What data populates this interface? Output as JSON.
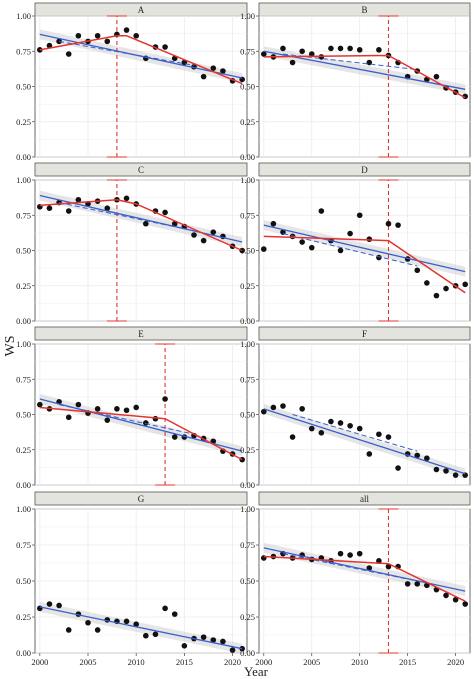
{
  "figure": {
    "ylabel": "WS",
    "xlabel": "Year",
    "x_ticks": [
      2000,
      2005,
      2010,
      2015,
      2020
    ],
    "y_ticks": [
      "0.00",
      "0.25",
      "0.50",
      "0.75",
      "1.00"
    ],
    "colors": {
      "points": "#111111",
      "segmented_fit": "#e3342f",
      "linear_fit": "#3a5fcd",
      "confidence_band": "#c8c8c8",
      "breakpoint_marker": "#e3342f",
      "strip_background": "#e4e4de",
      "grid": "#ebebeb"
    }
  },
  "chart_data": [
    {
      "panel": "A",
      "type": "scatter",
      "xlim": [
        1999.5,
        2021.5
      ],
      "ylim": [
        0,
        1
      ],
      "x": [
        2000,
        2001,
        2002,
        2003,
        2004,
        2005,
        2006,
        2007,
        2008,
        2009,
        2010,
        2011,
        2012,
        2013,
        2014,
        2015,
        2016,
        2017,
        2018,
        2019,
        2020,
        2021
      ],
      "y": [
        0.76,
        0.79,
        0.82,
        0.73,
        0.86,
        0.82,
        0.86,
        0.82,
        0.87,
        0.9,
        0.86,
        0.7,
        0.78,
        0.78,
        0.7,
        0.67,
        0.64,
        0.57,
        0.63,
        0.61,
        0.54,
        0.55
      ],
      "linear_fit": [
        [
          2000,
          0.87
        ],
        [
          2021,
          0.56
        ]
      ],
      "segmented_fit": [
        [
          2000,
          0.76
        ],
        [
          2008,
          0.86
        ],
        [
          2009,
          0.86
        ],
        [
          2021,
          0.52
        ]
      ],
      "dashed_fit": [
        [
          2002,
          0.82
        ],
        [
          2016,
          0.65
        ]
      ],
      "breakpoint": {
        "x": 2008,
        "ci": [
          0,
          1
        ]
      }
    },
    {
      "panel": "B",
      "type": "scatter",
      "xlim": [
        1999.5,
        2021.5
      ],
      "ylim": [
        0,
        1
      ],
      "x": [
        2000,
        2001,
        2002,
        2003,
        2004,
        2005,
        2006,
        2007,
        2008,
        2009,
        2010,
        2011,
        2012,
        2013,
        2014,
        2015,
        2016,
        2017,
        2018,
        2019,
        2020,
        2021
      ],
      "y": [
        0.73,
        0.71,
        0.77,
        0.67,
        0.75,
        0.73,
        0.71,
        0.77,
        0.77,
        0.77,
        0.76,
        0.67,
        0.76,
        0.72,
        0.67,
        0.57,
        0.61,
        0.55,
        0.57,
        0.49,
        0.46,
        0.43
      ],
      "linear_fit": [
        [
          2000,
          0.75
        ],
        [
          2021,
          0.48
        ]
      ],
      "segmented_fit": [
        [
          2000,
          0.71
        ],
        [
          2013,
          0.72
        ],
        [
          2021,
          0.42
        ]
      ],
      "dashed_fit": [
        [
          2002,
          0.73
        ],
        [
          2016,
          0.62
        ]
      ],
      "breakpoint": {
        "x": 2013,
        "ci": [
          0,
          1
        ]
      }
    },
    {
      "panel": "C",
      "type": "scatter",
      "xlim": [
        1999.5,
        2021.5
      ],
      "ylim": [
        0,
        1
      ],
      "x": [
        2000,
        2001,
        2002,
        2003,
        2004,
        2005,
        2006,
        2007,
        2008,
        2009,
        2010,
        2011,
        2012,
        2013,
        2014,
        2015,
        2016,
        2017,
        2018,
        2019,
        2020,
        2021
      ],
      "y": [
        0.81,
        0.8,
        0.84,
        0.78,
        0.86,
        0.83,
        0.85,
        0.8,
        0.86,
        0.87,
        0.83,
        0.69,
        0.78,
        0.77,
        0.69,
        0.67,
        0.61,
        0.57,
        0.63,
        0.6,
        0.53,
        0.5
      ],
      "linear_fit": [
        [
          2000,
          0.89
        ],
        [
          2021,
          0.56
        ]
      ],
      "segmented_fit": [
        [
          2000,
          0.82
        ],
        [
          2008,
          0.86
        ],
        [
          2010,
          0.83
        ],
        [
          2021,
          0.5
        ]
      ],
      "dashed_fit": [
        [
          2002,
          0.84
        ],
        [
          2016,
          0.64
        ]
      ],
      "breakpoint": {
        "x": 2008,
        "ci": [
          0,
          1
        ]
      }
    },
    {
      "panel": "D",
      "type": "scatter",
      "xlim": [
        1999.5,
        2021.5
      ],
      "ylim": [
        0,
        1
      ],
      "x": [
        2000,
        2001,
        2002,
        2003,
        2004,
        2005,
        2006,
        2007,
        2008,
        2009,
        2010,
        2011,
        2012,
        2013,
        2014,
        2015,
        2016,
        2017,
        2018,
        2019,
        2020,
        2021
      ],
      "y": [
        0.51,
        0.69,
        0.63,
        0.6,
        0.56,
        0.52,
        0.78,
        0.57,
        0.5,
        0.62,
        0.75,
        0.58,
        0.45,
        0.69,
        0.68,
        0.44,
        0.36,
        0.27,
        0.18,
        0.23,
        0.25,
        0.26
      ],
      "linear_fit": [
        [
          2000,
          0.68
        ],
        [
          2021,
          0.35
        ]
      ],
      "segmented_fit": [
        [
          2000,
          0.6
        ],
        [
          2013,
          0.57
        ],
        [
          2021,
          0.2
        ]
      ],
      "dashed_fit": [
        [
          2002,
          0.62
        ],
        [
          2016,
          0.39
        ]
      ],
      "breakpoint": {
        "x": 2013,
        "ci": [
          0,
          1
        ]
      }
    },
    {
      "panel": "E",
      "type": "scatter",
      "xlim": [
        1999.5,
        2021.5
      ],
      "ylim": [
        0,
        1
      ],
      "x": [
        2000,
        2001,
        2002,
        2003,
        2004,
        2005,
        2006,
        2007,
        2008,
        2009,
        2010,
        2011,
        2012,
        2013,
        2014,
        2015,
        2016,
        2017,
        2018,
        2019,
        2020,
        2021
      ],
      "y": [
        0.57,
        0.54,
        0.59,
        0.48,
        0.57,
        0.51,
        0.54,
        0.46,
        0.54,
        0.53,
        0.55,
        0.44,
        0.47,
        0.61,
        0.34,
        0.34,
        0.35,
        0.33,
        0.31,
        0.24,
        0.22,
        0.18
      ],
      "linear_fit": [
        [
          2000,
          0.61
        ],
        [
          2021,
          0.24
        ]
      ],
      "segmented_fit": [
        [
          2000,
          0.55
        ],
        [
          2013,
          0.47
        ],
        [
          2021,
          0.18
        ]
      ],
      "dashed_fit": [
        [
          2002,
          0.57
        ],
        [
          2016,
          0.36
        ]
      ],
      "breakpoint": {
        "x": 2013,
        "ci": [
          0,
          1
        ]
      }
    },
    {
      "panel": "F",
      "type": "scatter",
      "xlim": [
        1999.5,
        2021.5
      ],
      "ylim": [
        0,
        1
      ],
      "x": [
        2000,
        2001,
        2002,
        2003,
        2004,
        2005,
        2006,
        2007,
        2008,
        2009,
        2010,
        2011,
        2012,
        2013,
        2014,
        2015,
        2016,
        2017,
        2018,
        2019,
        2020,
        2021
      ],
      "y": [
        0.52,
        0.55,
        0.56,
        0.34,
        0.54,
        0.4,
        0.37,
        0.45,
        0.44,
        0.42,
        0.4,
        0.22,
        0.36,
        0.34,
        0.12,
        0.22,
        0.21,
        0.19,
        0.11,
        0.1,
        0.07,
        0.07
      ],
      "linear_fit": [
        [
          2000,
          0.54
        ],
        [
          2021,
          0.08
        ]
      ],
      "dashed_fit": [
        [
          2003,
          0.5
        ],
        [
          2016,
          0.24
        ]
      ]
    },
    {
      "panel": "G",
      "type": "scatter",
      "xlim": [
        1999.5,
        2021.5
      ],
      "ylim": [
        0,
        1
      ],
      "x": [
        2000,
        2001,
        2002,
        2003,
        2004,
        2005,
        2006,
        2007,
        2008,
        2009,
        2010,
        2011,
        2012,
        2013,
        2014,
        2015,
        2016,
        2017,
        2018,
        2019,
        2020,
        2021
      ],
      "y": [
        0.31,
        0.34,
        0.33,
        0.16,
        0.27,
        0.21,
        0.16,
        0.23,
        0.22,
        0.22,
        0.2,
        0.12,
        0.13,
        0.31,
        0.27,
        0.05,
        0.1,
        0.11,
        0.09,
        0.08,
        0.02,
        0.03
      ],
      "linear_fit": [
        [
          2000,
          0.32
        ],
        [
          2021,
          0.03
        ]
      ]
    },
    {
      "panel": "all",
      "type": "scatter",
      "xlim": [
        1999.5,
        2021.5
      ],
      "ylim": [
        0,
        1
      ],
      "x": [
        2000,
        2001,
        2002,
        2003,
        2004,
        2005,
        2006,
        2007,
        2008,
        2009,
        2010,
        2011,
        2012,
        2013,
        2014,
        2015,
        2016,
        2017,
        2018,
        2019,
        2020,
        2021
      ],
      "y": [
        0.66,
        0.67,
        0.69,
        0.66,
        0.68,
        0.65,
        0.66,
        0.64,
        0.69,
        0.68,
        0.69,
        0.59,
        0.64,
        0.6,
        0.6,
        0.48,
        0.48,
        0.47,
        0.44,
        0.4,
        0.37,
        0.34
      ],
      "linear_fit": [
        [
          2000,
          0.73
        ],
        [
          2021,
          0.43
        ]
      ],
      "segmented_fit": [
        [
          2000,
          0.67
        ],
        [
          2013,
          0.62
        ],
        [
          2021,
          0.36
        ]
      ],
      "dashed_fit": [
        [
          2002,
          0.69
        ],
        [
          2016,
          0.5
        ]
      ],
      "breakpoint": {
        "x": 2013,
        "ci": [
          0,
          1
        ]
      }
    }
  ]
}
